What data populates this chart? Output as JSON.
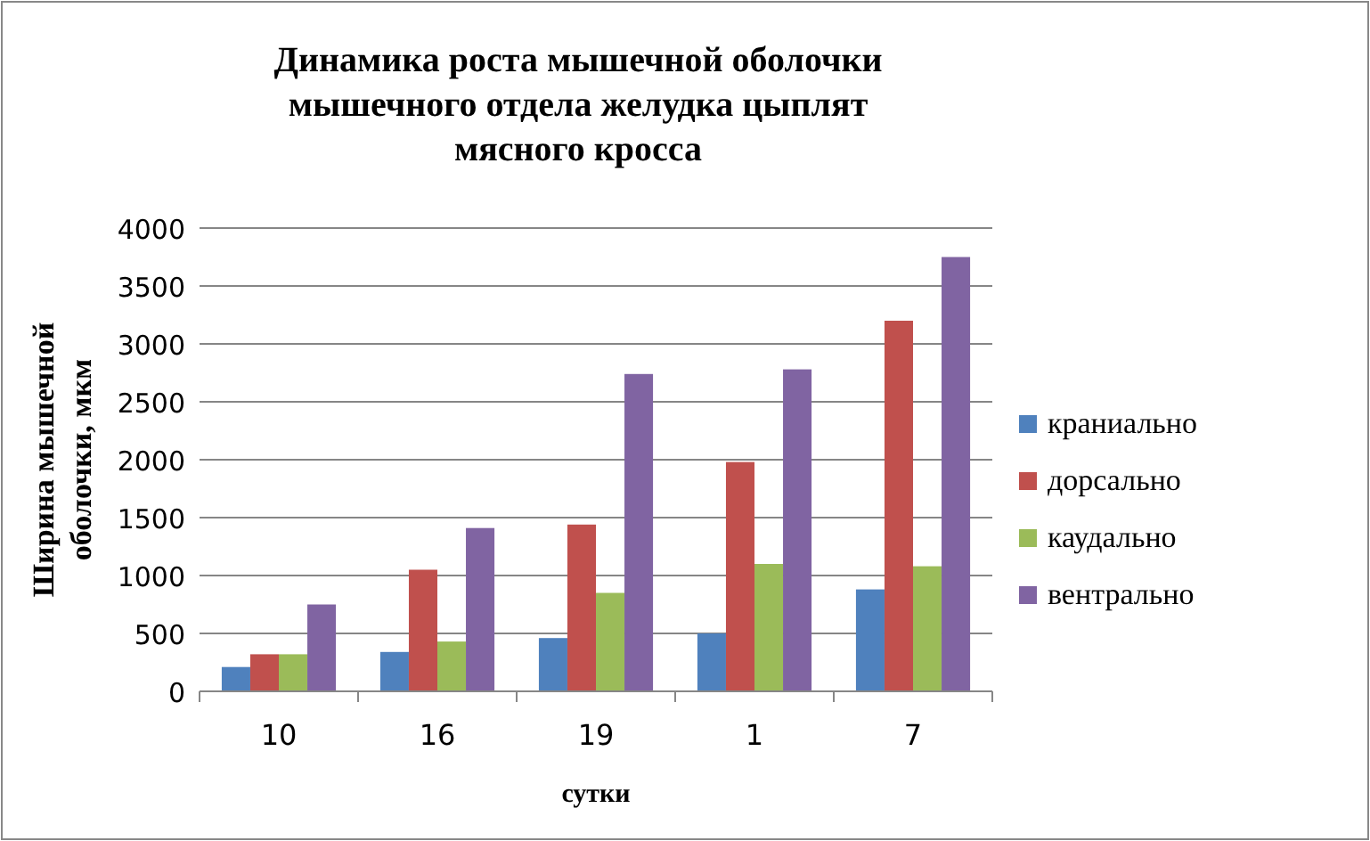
{
  "chart_data": {
    "type": "bar",
    "title": "Динамика роста мышечной оболочки мышечного отдела желудка цыплят мясного кросса",
    "xlabel": "сутки",
    "ylabel": "Ширина мышечной оболочки, мкм",
    "categories": [
      "10",
      "16",
      "19",
      "1",
      "7"
    ],
    "series": [
      {
        "name": "краниально",
        "color": "#4f81bd",
        "values": [
          210,
          340,
          460,
          500,
          880
        ]
      },
      {
        "name": "дорсально",
        "color": "#c0504d",
        "values": [
          320,
          1050,
          1440,
          1980,
          3200
        ]
      },
      {
        "name": "каудально",
        "color": "#9bbb59",
        "values": [
          320,
          430,
          850,
          1100,
          1080
        ]
      },
      {
        "name": "вентрально",
        "color": "#8064a2",
        "values": [
          750,
          1410,
          2740,
          2780,
          3750
        ]
      }
    ],
    "ylim": [
      0,
      4000
    ],
    "yticks": [
      0,
      500,
      1000,
      1500,
      2000,
      2500,
      3000,
      3500,
      4000
    ],
    "grid": "y",
    "legend": "right"
  }
}
